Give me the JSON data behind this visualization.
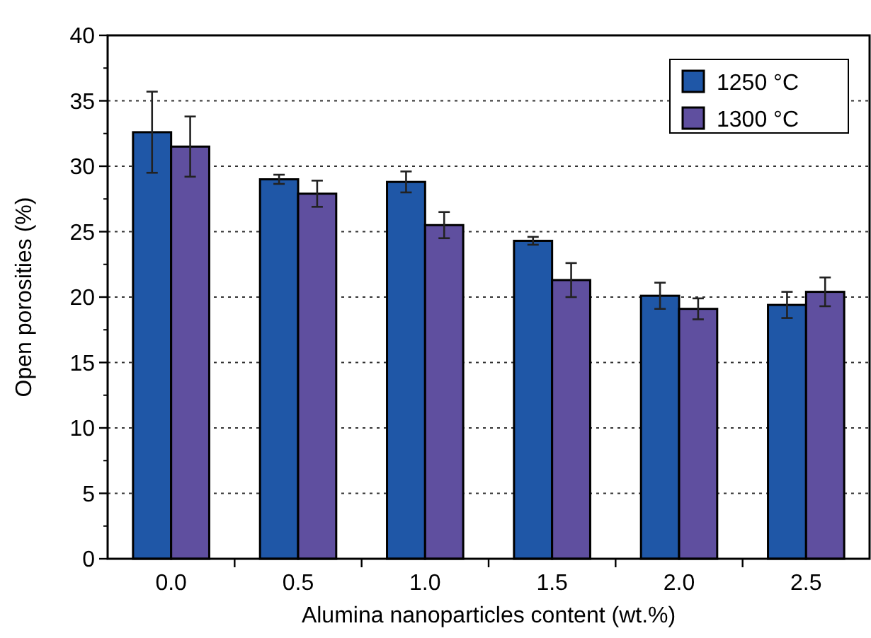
{
  "chart_data": {
    "type": "bar",
    "xlabel": "Alumina nanoparticles content (wt.%)",
    "ylabel": "Open porosities (%)",
    "categories": [
      "0.0",
      "0.5",
      "1.0",
      "1.5",
      "2.0",
      "2.5"
    ],
    "series": [
      {
        "name": "1250 °C",
        "color": "#1f57a7",
        "values": [
          32.6,
          29.0,
          28.8,
          24.3,
          20.1,
          19.4
        ],
        "errors": [
          3.1,
          0.35,
          0.8,
          0.3,
          1.0,
          1.0
        ]
      },
      {
        "name": "1300 °C",
        "color": "#5f4f9f",
        "values": [
          31.5,
          27.9,
          25.5,
          21.3,
          19.1,
          20.4
        ],
        "errors": [
          2.3,
          1.0,
          1.0,
          1.3,
          0.8,
          1.1
        ]
      }
    ],
    "ylim": [
      0,
      40
    ],
    "yticks": [
      0,
      5,
      10,
      15,
      20,
      25,
      30,
      35,
      40
    ],
    "grid": "y",
    "legend": "top right"
  }
}
